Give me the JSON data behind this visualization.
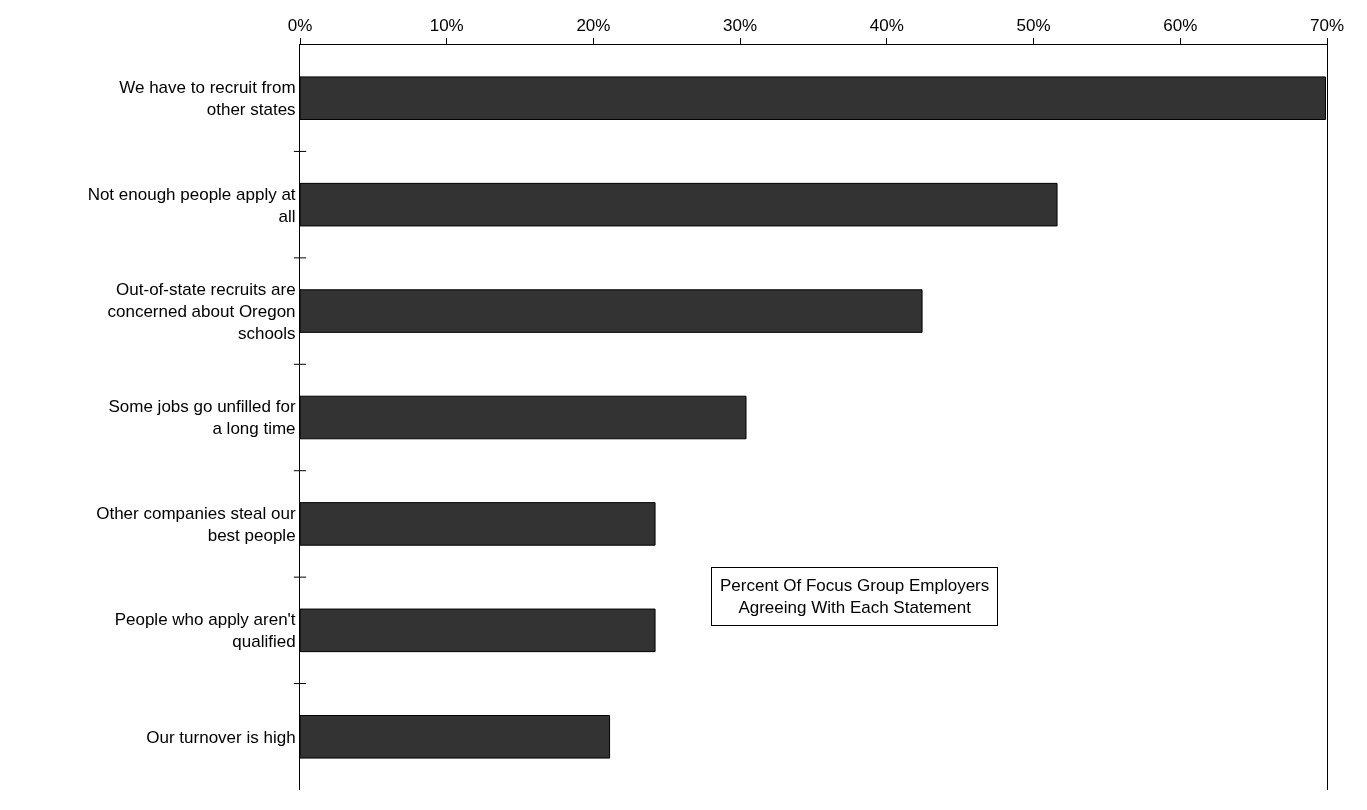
{
  "chart_data": {
    "type": "bar",
    "orientation": "horizontal",
    "categories": [
      "We have to recruit from other states",
      "Not enough people apply at all",
      "Out-of-state recruits are concerned about Oregon schools",
      "Some jobs go unfilled for a long time",
      "Other companies steal our best people",
      "People who apply aren't qualified",
      "Our turnover is high"
    ],
    "values": [
      69.9,
      51.6,
      42.4,
      30.4,
      24.2,
      24.2,
      21.1
    ],
    "color": "#333333",
    "xlim": [
      0,
      70
    ],
    "xticks": [
      {
        "value": 0,
        "label": "0%"
      },
      {
        "value": 10,
        "label": "10%"
      },
      {
        "value": 20,
        "label": "20%"
      },
      {
        "value": 30,
        "label": "30%"
      },
      {
        "value": 40,
        "label": "40%"
      },
      {
        "value": 50,
        "label": "50%"
      },
      {
        "value": 60,
        "label": "60%"
      },
      {
        "value": 70,
        "label": "70%"
      }
    ],
    "annotations": [
      "Percent Of Focus Group Employers Agreeing With Each Statement"
    ],
    "grid": false
  }
}
